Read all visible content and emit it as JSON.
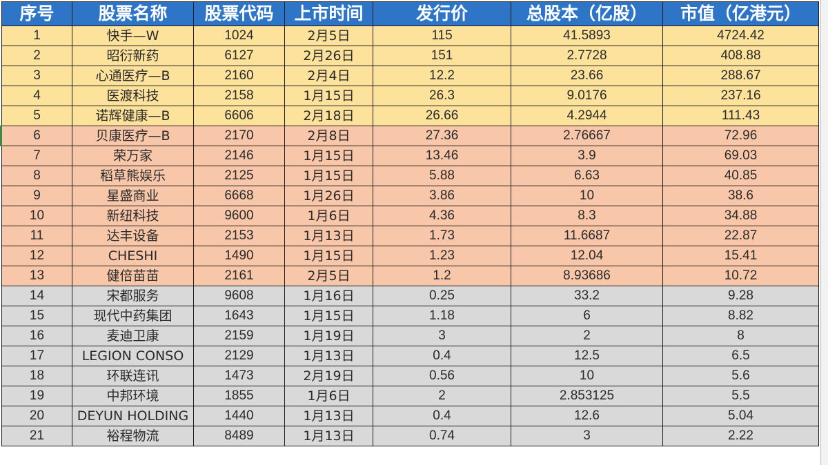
{
  "table": {
    "headers": [
      "序号",
      "股票名称",
      "股票代码",
      "上市时间",
      "发行价",
      "总股本（亿股）",
      "市值（亿港元）"
    ],
    "tier_colors": {
      "header": "#2e75c8",
      "yellow": "#fde29b",
      "orange": "#f8c7a9",
      "gray": "#d9d9d9"
    },
    "rows": [
      {
        "no": "1",
        "name": "快手—W",
        "code": "1024",
        "date": "2月5日",
        "price": "115",
        "shares": "41.5893",
        "cap": "4724.42",
        "tier": "yellow"
      },
      {
        "no": "2",
        "name": "昭衍新药",
        "code": "6127",
        "date": "2月26日",
        "price": "151",
        "shares": "2.7728",
        "cap": "408.88",
        "tier": "yellow"
      },
      {
        "no": "3",
        "name": "心通医疗—B",
        "code": "2160",
        "date": "2月4日",
        "price": "12.2",
        "shares": "23.66",
        "cap": "288.67",
        "tier": "yellow"
      },
      {
        "no": "4",
        "name": "医渡科技",
        "code": "2158",
        "date": "1月15日",
        "price": "26.3",
        "shares": "9.0176",
        "cap": "237.16",
        "tier": "yellow"
      },
      {
        "no": "5",
        "name": "诺辉健康—B",
        "code": "6606",
        "date": "2月18日",
        "price": "26.66",
        "shares": "4.2944",
        "cap": "111.43",
        "tier": "yellow"
      },
      {
        "no": "6",
        "name": "贝康医疗—B",
        "code": "2170",
        "date": "2月8日",
        "price": "27.36",
        "shares": "2.76667",
        "cap": "72.96",
        "tier": "orange"
      },
      {
        "no": "7",
        "name": "荣万家",
        "code": "2146",
        "date": "1月15日",
        "price": "13.46",
        "shares": "3.9",
        "cap": "69.03",
        "tier": "orange"
      },
      {
        "no": "8",
        "name": "稻草熊娱乐",
        "code": "2125",
        "date": "1月15日",
        "price": "5.88",
        "shares": "6.63",
        "cap": "40.85",
        "tier": "orange"
      },
      {
        "no": "9",
        "name": "星盛商业",
        "code": "6668",
        "date": "1月26日",
        "price": "3.86",
        "shares": "10",
        "cap": "38.6",
        "tier": "orange"
      },
      {
        "no": "10",
        "name": "新纽科技",
        "code": "9600",
        "date": "1月6日",
        "price": "4.36",
        "shares": "8.3",
        "cap": "34.88",
        "tier": "orange"
      },
      {
        "no": "11",
        "name": "达丰设备",
        "code": "2153",
        "date": "1月13日",
        "price": "1.73",
        "shares": "11.6687",
        "cap": "22.87",
        "tier": "orange"
      },
      {
        "no": "12",
        "name": "CHESHI",
        "code": "1490",
        "date": "1月15日",
        "price": "1.23",
        "shares": "12.04",
        "cap": "15.41",
        "tier": "orange"
      },
      {
        "no": "13",
        "name": "健倍苗苗",
        "code": "2161",
        "date": "2月5日",
        "price": "1.2",
        "shares": "8.93686",
        "cap": "10.72",
        "tier": "orange"
      },
      {
        "no": "14",
        "name": "宋都服务",
        "code": "9608",
        "date": "1月16日",
        "price": "0.25",
        "shares": "33.2",
        "cap": "9.28",
        "tier": "gray"
      },
      {
        "no": "15",
        "name": "现代中药集团",
        "code": "1643",
        "date": "1月15日",
        "price": "1.18",
        "shares": "6",
        "cap": "8.82",
        "tier": "gray"
      },
      {
        "no": "16",
        "name": "麦迪卫康",
        "code": "2159",
        "date": "1月19日",
        "price": "3",
        "shares": "2",
        "cap": "8",
        "tier": "gray"
      },
      {
        "no": "17",
        "name": "LEGION CONSO",
        "code": "2129",
        "date": "1月13日",
        "price": "0.4",
        "shares": "12.5",
        "cap": "6.5",
        "tier": "gray"
      },
      {
        "no": "18",
        "name": "环联连讯",
        "code": "1473",
        "date": "2月19日",
        "price": "0.56",
        "shares": "10",
        "cap": "5.6",
        "tier": "gray"
      },
      {
        "no": "19",
        "name": "中邦环境",
        "code": "1855",
        "date": "1月6日",
        "price": "2",
        "shares": "2.853125",
        "cap": "5.5",
        "tier": "gray"
      },
      {
        "no": "20",
        "name": "DEYUN HOLDING",
        "code": "1440",
        "date": "1月13日",
        "price": "0.4",
        "shares": "12.6",
        "cap": "5.04",
        "tier": "gray"
      },
      {
        "no": "21",
        "name": "裕程物流",
        "code": "8489",
        "date": "1月13日",
        "price": "0.74",
        "shares": "3",
        "cap": "2.22",
        "tier": "gray"
      }
    ]
  }
}
